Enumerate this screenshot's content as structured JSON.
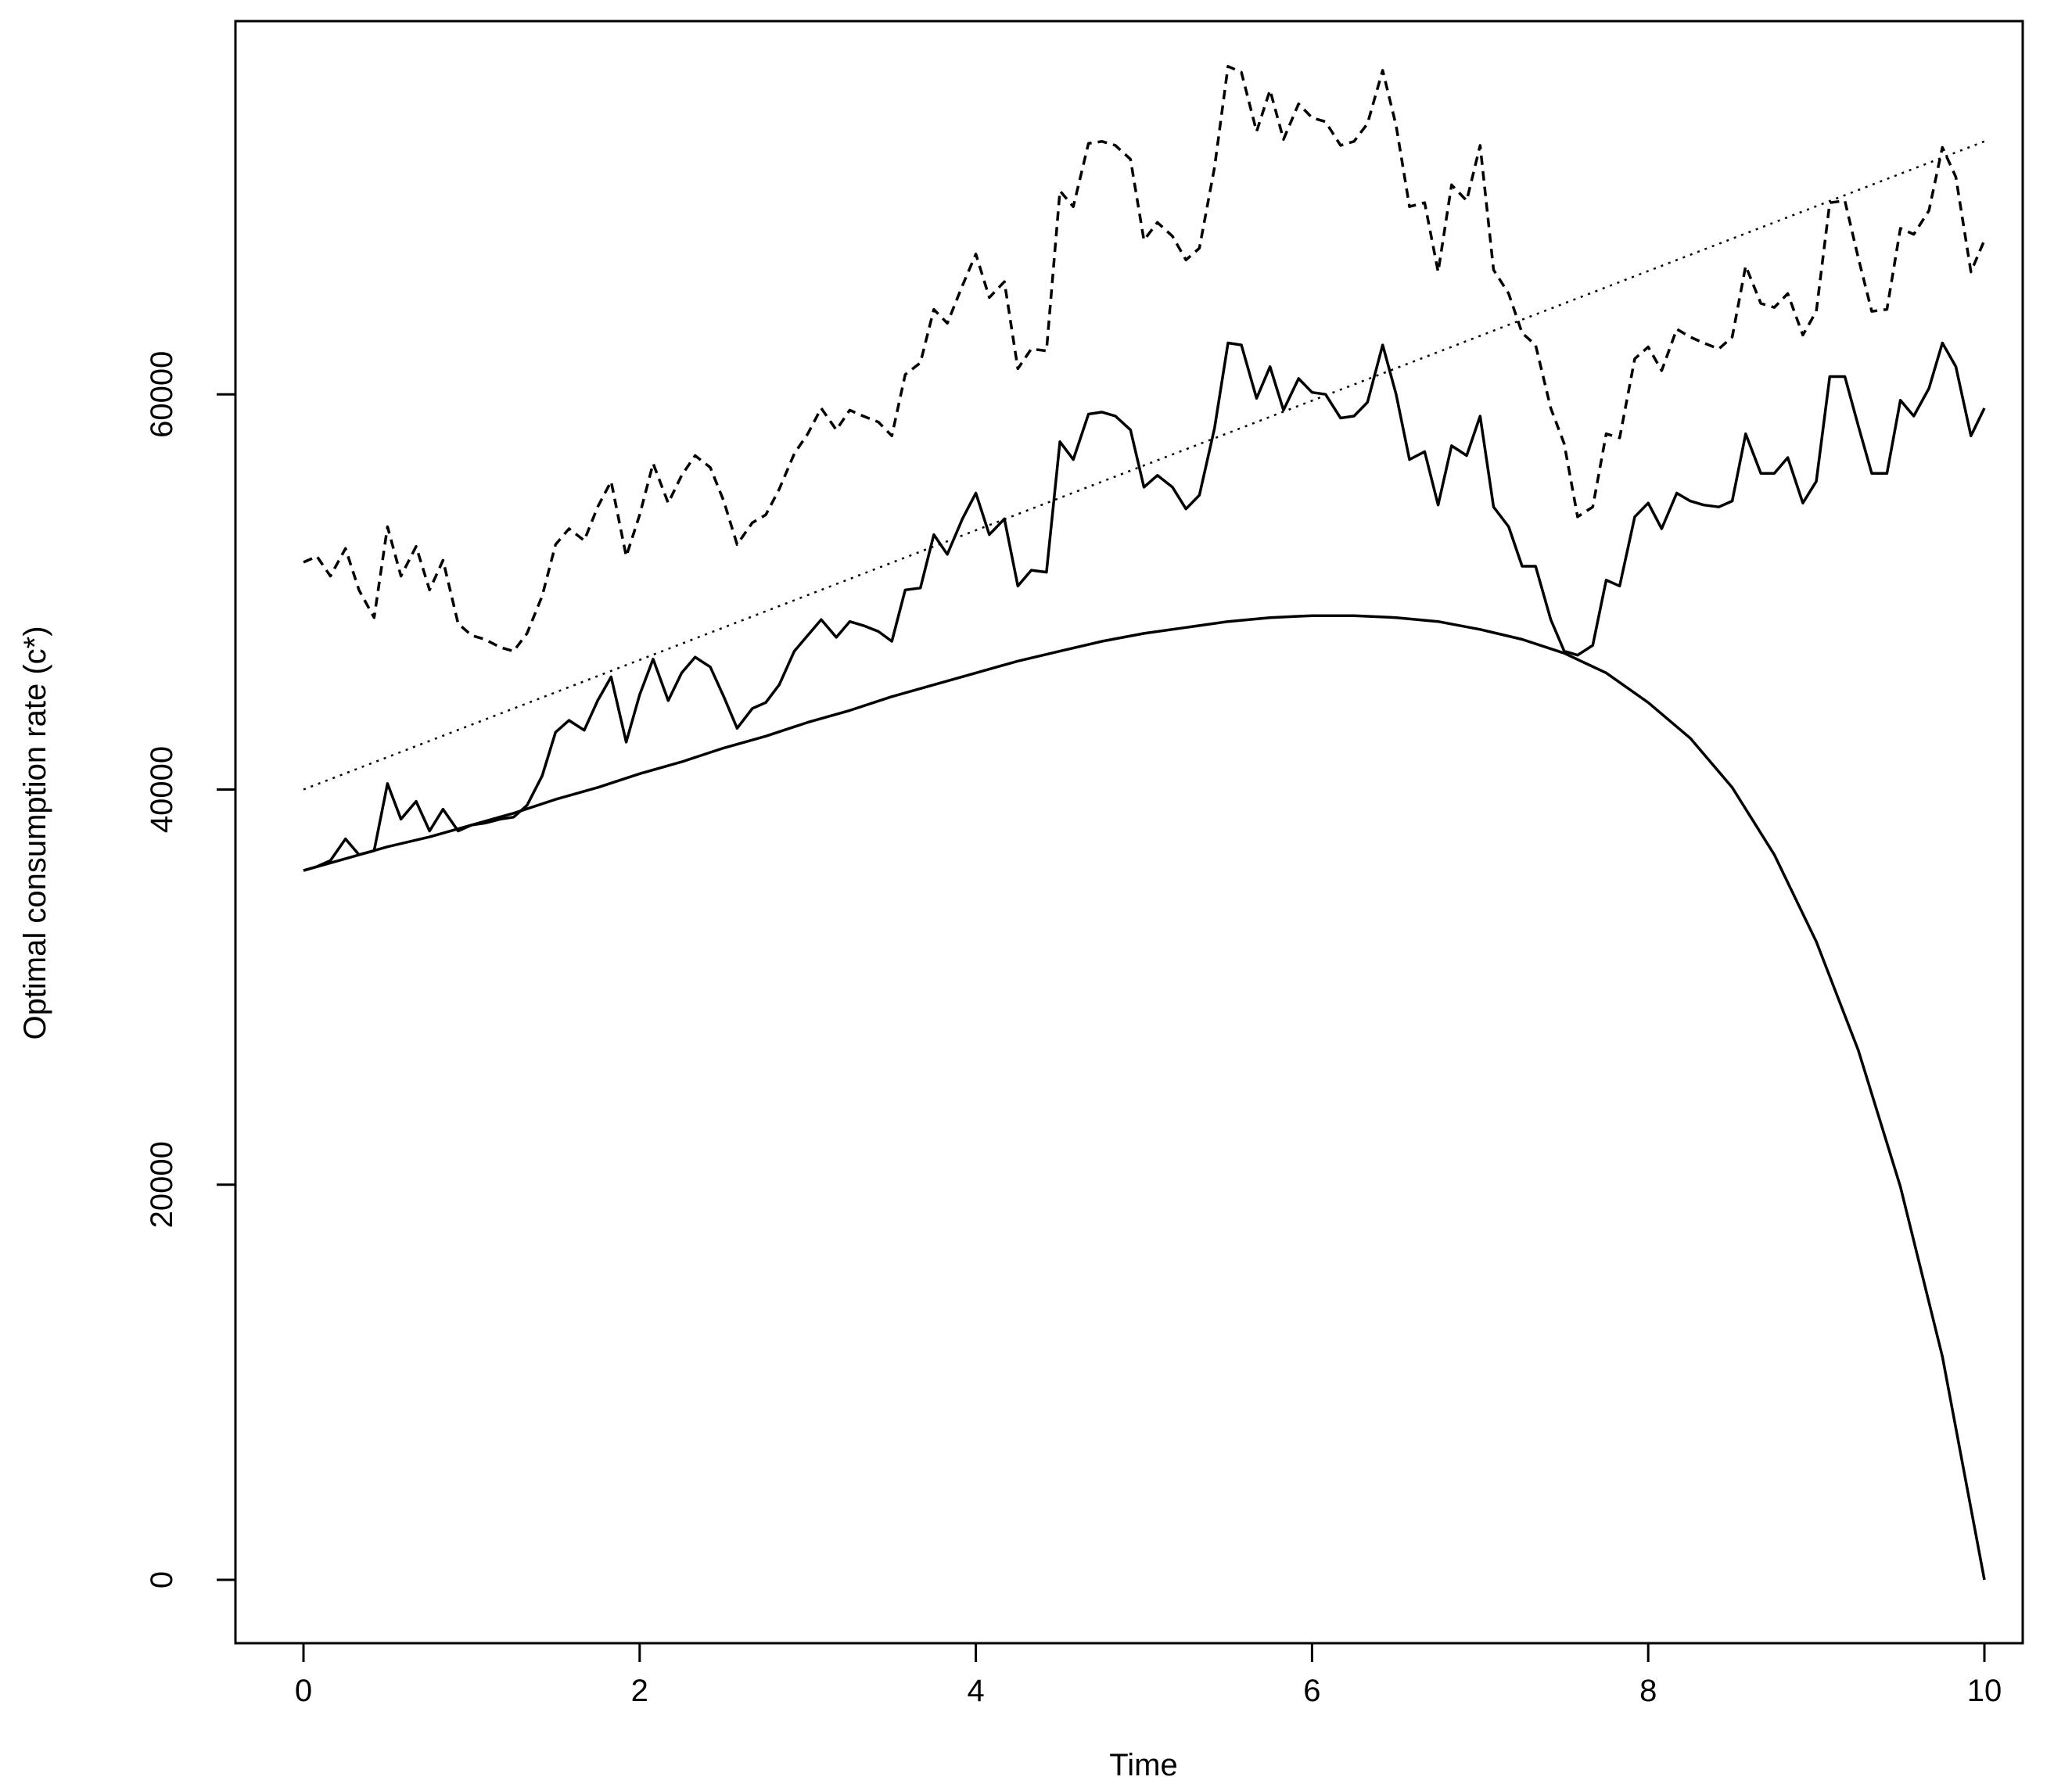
{
  "chart_data": {
    "type": "line",
    "title": "",
    "xlabel": "Time",
    "ylabel": "Optimal consumption rate (c*)",
    "xlim": [
      -0.4,
      10.2
    ],
    "ylim": [
      -3000,
      79500
    ],
    "xticks": [
      0,
      2,
      4,
      6,
      8,
      10
    ],
    "yticks": [
      0,
      20000,
      40000,
      60000
    ],
    "xtick_labels": [
      "0",
      "2",
      "4",
      "6",
      "8",
      "10"
    ],
    "ytick_labels": [
      "0",
      "20000",
      "40000",
      "60000"
    ],
    "grid": false,
    "legend": "none",
    "series": [
      {
        "style": "dashed",
        "color": "#000000",
        "x": [
          0,
          0.08,
          0.16,
          0.25,
          0.33,
          0.42,
          0.5,
          0.58,
          0.67,
          0.75,
          0.83,
          0.92,
          1.0,
          1.08,
          1.17,
          1.25,
          1.33,
          1.42,
          1.5,
          1.58,
          1.67,
          1.75,
          1.83,
          1.92,
          2.0,
          2.08,
          2.17,
          2.25,
          2.33,
          2.42,
          2.5,
          2.58,
          2.67,
          2.75,
          2.83,
          2.92,
          3.0,
          3.08,
          3.17,
          3.25,
          3.33,
          3.42,
          3.5,
          3.58,
          3.67,
          3.75,
          3.83,
          3.92,
          4.0,
          4.08,
          4.17,
          4.25,
          4.33,
          4.42,
          4.5,
          4.58,
          4.67,
          4.75,
          4.83,
          4.92,
          5.0,
          5.08,
          5.17,
          5.25,
          5.33,
          5.42,
          5.5,
          5.58,
          5.67,
          5.75,
          5.83,
          5.92,
          6.0,
          6.08,
          6.17,
          6.25,
          6.33,
          6.42,
          6.5,
          6.58,
          6.67,
          6.75,
          6.83,
          6.92,
          7.0,
          7.08,
          7.17,
          7.25,
          7.33,
          7.42,
          7.5,
          7.58,
          7.67,
          7.75,
          7.83,
          7.92,
          8.0,
          8.08,
          8.17,
          8.25,
          8.33,
          8.42,
          8.5,
          8.58,
          8.67,
          8.75,
          8.83,
          8.92,
          9.0,
          9.08,
          9.17,
          9.25,
          9.33,
          9.42,
          9.5,
          9.58,
          9.67,
          9.75,
          9.83,
          9.92,
          10.0
        ],
        "y": [
          51500,
          51800,
          50800,
          52200,
          50100,
          48700,
          53300,
          50800,
          52300,
          50100,
          51600,
          48400,
          47800,
          47600,
          47200,
          47000,
          47900,
          49800,
          52400,
          53200,
          52600,
          54300,
          55600,
          51800,
          53900,
          56500,
          54500,
          55900,
          56900,
          56300,
          54600,
          52400,
          53500,
          53900,
          55200,
          57000,
          58000,
          59300,
          58200,
          59200,
          58900,
          58600,
          57900,
          61000,
          61600,
          64300,
          63600,
          65500,
          67100,
          64900,
          65700,
          61300,
          62300,
          62200,
          70300,
          69500,
          72700,
          72800,
          72600,
          71900,
          67800,
          68700,
          68000,
          66800,
          67400,
          71500,
          76600,
          76300,
          73300,
          75400,
          72900,
          74700,
          74000,
          73800,
          72600,
          72800,
          73700,
          76400,
          73600,
          69500,
          69700,
          66200,
          70600,
          69800,
          72600,
          66300,
          65100,
          63100,
          62500,
          59300,
          57500,
          53800,
          54300,
          58000,
          57800,
          61800,
          62400,
          61200,
          63300,
          62900,
          62600,
          62300,
          62900,
          66500,
          64600,
          64400,
          65100,
          63000,
          64200,
          69700,
          69800,
          66900,
          64200,
          64300,
          68400,
          68100,
          69300,
          72500,
          71000,
          66200,
          67800
        ]
      },
      {
        "style": "solid",
        "color": "#000000",
        "x": [
          0,
          0.08,
          0.16,
          0.25,
          0.33,
          0.42,
          0.5,
          0.58,
          0.67,
          0.75,
          0.83,
          0.92,
          1.0,
          1.08,
          1.17,
          1.25,
          1.33,
          1.42,
          1.5,
          1.58,
          1.67,
          1.75,
          1.83,
          1.92,
          2.0,
          2.08,
          2.17,
          2.25,
          2.33,
          2.42,
          2.5,
          2.58,
          2.67,
          2.75,
          2.83,
          2.92,
          3.0,
          3.08,
          3.17,
          3.25,
          3.33,
          3.42,
          3.5,
          3.58,
          3.67,
          3.75,
          3.83,
          3.92,
          4.0,
          4.08,
          4.17,
          4.25,
          4.33,
          4.42,
          4.5,
          4.58,
          4.67,
          4.75,
          4.83,
          4.92,
          5.0,
          5.08,
          5.17,
          5.25,
          5.33,
          5.42,
          5.5,
          5.58,
          5.67,
          5.75,
          5.83,
          5.92,
          6.0,
          6.08,
          6.17,
          6.25,
          6.33,
          6.42,
          6.5,
          6.58,
          6.67,
          6.75,
          6.83,
          6.92,
          7.0,
          7.08,
          7.17,
          7.25,
          7.33,
          7.42,
          7.5,
          7.58,
          7.67,
          7.75,
          7.83,
          7.92,
          8.0,
          8.08,
          8.17,
          8.25,
          8.33,
          8.42,
          8.5,
          8.58,
          8.67,
          8.75,
          8.83,
          8.92,
          9.0,
          9.08,
          9.17,
          9.25,
          9.33,
          9.42,
          9.5,
          9.58,
          9.67,
          9.75,
          9.83,
          9.92,
          10.0
        ],
        "y": [
          35900,
          36100,
          36400,
          37500,
          36700,
          36900,
          40300,
          38500,
          39400,
          37900,
          39000,
          37900,
          38200,
          38300,
          38500,
          38600,
          39200,
          40700,
          42900,
          43500,
          43000,
          44500,
          45700,
          42400,
          44800,
          46600,
          44500,
          45900,
          46700,
          46200,
          44700,
          43100,
          44100,
          44400,
          45300,
          47000,
          47800,
          48600,
          47700,
          48500,
          48300,
          48000,
          47500,
          50100,
          50200,
          52900,
          51900,
          53700,
          55000,
          52900,
          53700,
          50300,
          51100,
          51000,
          57600,
          56700,
          59000,
          59100,
          58900,
          58200,
          55300,
          55900,
          55300,
          54200,
          54900,
          58300,
          62600,
          62500,
          59800,
          61400,
          59200,
          60800,
          60100,
          60000,
          58800,
          58900,
          59600,
          62500,
          60000,
          56700,
          57100,
          54400,
          57400,
          56900,
          58900,
          54300,
          53300,
          51300,
          51300,
          48600,
          47000,
          46800,
          47300,
          50600,
          50300,
          53800,
          54500,
          53200,
          55000,
          54600,
          54400,
          54300,
          54600,
          58000,
          56000,
          56000,
          56800,
          54500,
          55600,
          60900,
          60900,
          58400,
          56000,
          56000,
          59700,
          58900,
          60300,
          62600,
          61400,
          57900,
          59300
        ]
      },
      {
        "style": "solid",
        "color": "#000000",
        "x": [
          0,
          0.25,
          0.5,
          0.75,
          1.0,
          1.25,
          1.5,
          1.75,
          2.0,
          2.25,
          2.5,
          2.75,
          3.0,
          3.25,
          3.5,
          3.75,
          4.0,
          4.25,
          4.5,
          4.75,
          5.0,
          5.25,
          5.5,
          5.75,
          6.0,
          6.25,
          6.5,
          6.75,
          7.0,
          7.25,
          7.5,
          7.75,
          8.0,
          8.25,
          8.5,
          8.75,
          9.0,
          9.25,
          9.5,
          9.75,
          10.0
        ],
        "y": [
          35900,
          36500,
          37100,
          37600,
          38200,
          38800,
          39500,
          40100,
          40800,
          41400,
          42100,
          42700,
          43400,
          44000,
          44700,
          45300,
          45900,
          46500,
          47000,
          47500,
          47900,
          48200,
          48500,
          48700,
          48800,
          48800,
          48700,
          48500,
          48100,
          47600,
          46900,
          45900,
          44400,
          42600,
          40100,
          36700,
          32300,
          26800,
          19900,
          11300,
          0
        ]
      },
      {
        "style": "dotted",
        "color": "#000000",
        "x": [
          0,
          10
        ],
        "y": [
          40000,
          72800
        ]
      }
    ]
  }
}
